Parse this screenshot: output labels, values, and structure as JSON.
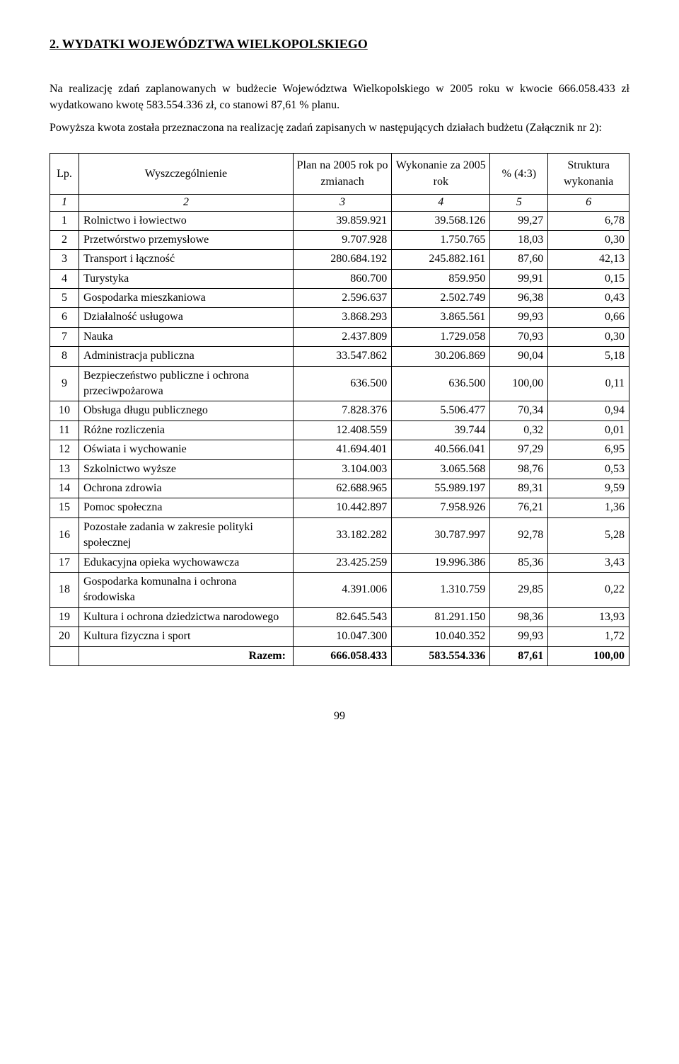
{
  "heading": "2. WYDATKI WOJEWÓDZTWA WIELKOPOLSKIEGO",
  "intro_p1": "Na realizację zdań zaplanowanych w budżecie Województwa Wielkopolskiego w 2005 roku w kwocie 666.058.433 zł wydatkowano kwotę 583.554.336 zł, co stanowi  87,61 % planu.",
  "intro_p2": "Powyższa kwota została przeznaczona na realizację zadań zapisanych w następujących działach budżetu (Załącznik nr 2):",
  "table": {
    "headers": {
      "lp": "Lp.",
      "name": "Wyszczególnienie",
      "plan": "Plan na 2005 rok po zmianach",
      "wyk": "Wykonanie za 2005 rok",
      "pct": "% (4:3)",
      "str": "Struktura wykonania"
    },
    "subheaders": [
      "1",
      "2",
      "3",
      "4",
      "5",
      "6"
    ],
    "rows": [
      {
        "lp": "1",
        "name": "Rolnictwo i łowiectwo",
        "plan": "39.859.921",
        "wyk": "39.568.126",
        "pct": "99,27",
        "str": "6,78"
      },
      {
        "lp": "2",
        "name": "Przetwórstwo przemysłowe",
        "plan": "9.707.928",
        "wyk": "1.750.765",
        "pct": "18,03",
        "str": "0,30"
      },
      {
        "lp": "3",
        "name": "Transport i łączność",
        "plan": "280.684.192",
        "wyk": "245.882.161",
        "pct": "87,60",
        "str": "42,13"
      },
      {
        "lp": "4",
        "name": "Turystyka",
        "plan": "860.700",
        "wyk": "859.950",
        "pct": "99,91",
        "str": "0,15"
      },
      {
        "lp": "5",
        "name": "Gospodarka mieszkaniowa",
        "plan": "2.596.637",
        "wyk": "2.502.749",
        "pct": "96,38",
        "str": "0,43"
      },
      {
        "lp": "6",
        "name": "Działalność usługowa",
        "plan": "3.868.293",
        "wyk": "3.865.561",
        "pct": "99,93",
        "str": "0,66"
      },
      {
        "lp": "7",
        "name": "Nauka",
        "plan": "2.437.809",
        "wyk": "1.729.058",
        "pct": "70,93",
        "str": "0,30"
      },
      {
        "lp": "8",
        "name": "Administracja publiczna",
        "plan": "33.547.862",
        "wyk": "30.206.869",
        "pct": "90,04",
        "str": "5,18"
      },
      {
        "lp": "9",
        "name": "Bezpieczeństwo publiczne i ochrona przeciwpożarowa",
        "plan": "636.500",
        "wyk": "636.500",
        "pct": "100,00",
        "str": "0,11"
      },
      {
        "lp": "10",
        "name": "Obsługa długu publicznego",
        "plan": "7.828.376",
        "wyk": "5.506.477",
        "pct": "70,34",
        "str": "0,94"
      },
      {
        "lp": "11",
        "name": "Różne rozliczenia",
        "plan": "12.408.559",
        "wyk": "39.744",
        "pct": "0,32",
        "str": "0,01"
      },
      {
        "lp": "12",
        "name": "Oświata i wychowanie",
        "plan": "41.694.401",
        "wyk": "40.566.041",
        "pct": "97,29",
        "str": "6,95"
      },
      {
        "lp": "13",
        "name": "Szkolnictwo wyższe",
        "plan": "3.104.003",
        "wyk": "3.065.568",
        "pct": "98,76",
        "str": "0,53"
      },
      {
        "lp": "14",
        "name": "Ochrona zdrowia",
        "plan": "62.688.965",
        "wyk": "55.989.197",
        "pct": "89,31",
        "str": "9,59"
      },
      {
        "lp": "15",
        "name": "Pomoc społeczna",
        "plan": "10.442.897",
        "wyk": "7.958.926",
        "pct": "76,21",
        "str": "1,36"
      },
      {
        "lp": "16",
        "name": "Pozostałe zadania w zakresie polityki społecznej",
        "plan": "33.182.282",
        "wyk": "30.787.997",
        "pct": "92,78",
        "str": "5,28"
      },
      {
        "lp": "17",
        "name": "Edukacyjna opieka wychowawcza",
        "plan": "23.425.259",
        "wyk": "19.996.386",
        "pct": "85,36",
        "str": "3,43"
      },
      {
        "lp": "18",
        "name": "Gospodarka komunalna i ochrona środowiska",
        "plan": "4.391.006",
        "wyk": "1.310.759",
        "pct": "29,85",
        "str": "0,22"
      },
      {
        "lp": "19",
        "name": "Kultura i ochrona dziedzictwa narodowego",
        "plan": "82.645.543",
        "wyk": "81.291.150",
        "pct": "98,36",
        "str": "13,93"
      },
      {
        "lp": "20",
        "name": "Kultura fizyczna i sport",
        "plan": "10.047.300",
        "wyk": "10.040.352",
        "pct": "99,93",
        "str": "1,72"
      }
    ],
    "total": {
      "label": "Razem:",
      "plan": "666.058.433",
      "wyk": "583.554.336",
      "pct": "87,61",
      "str": "100,00"
    }
  },
  "page_number": "99"
}
